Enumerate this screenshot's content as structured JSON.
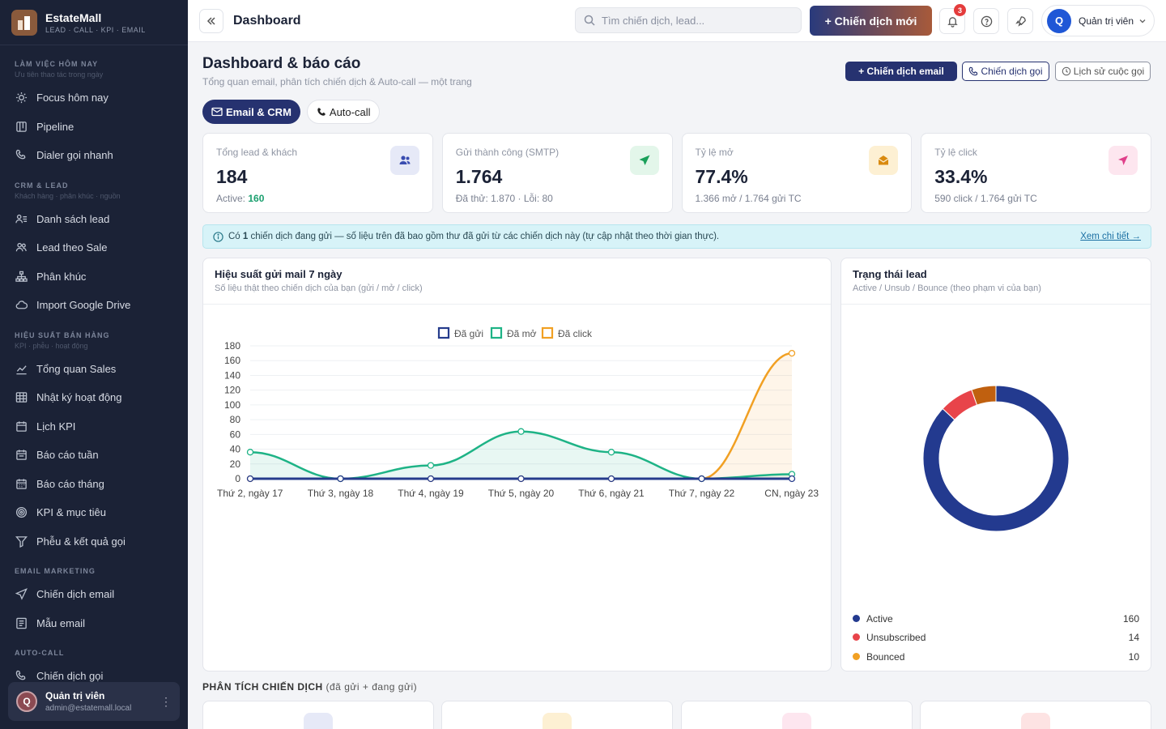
{
  "brand": {
    "name": "EstateMall",
    "tagline": "LEAD · CALL · KPI · EMAIL"
  },
  "sidebar": {
    "sections": [
      {
        "title": "LÀM VIỆC HÔM NAY",
        "subtitle": "Ưu tiên thao tác trong ngày",
        "items": [
          {
            "label": "Focus hôm nay",
            "icon": "sun-icon"
          },
          {
            "label": "Pipeline",
            "icon": "pipeline-icon"
          },
          {
            "label": "Dialer gọi nhanh",
            "icon": "phone-icon"
          }
        ]
      },
      {
        "title": "CRM & LEAD",
        "subtitle": "Khách hàng · phân khúc · nguồn",
        "items": [
          {
            "label": "Danh sách lead",
            "icon": "user-list-icon"
          },
          {
            "label": "Lead theo Sale",
            "icon": "users-icon"
          },
          {
            "label": "Phân khúc",
            "icon": "sitemap-icon"
          },
          {
            "label": "Import Google Drive",
            "icon": "cloud-icon"
          }
        ]
      },
      {
        "title": "HIỆU SUẤT BÁN HÀNG",
        "subtitle": "KPI · phễu · hoạt động",
        "items": [
          {
            "label": "Tổng quan Sales",
            "icon": "trend-icon"
          },
          {
            "label": "Nhật ký hoạt động",
            "icon": "table-icon"
          },
          {
            "label": "Lịch KPI",
            "icon": "calendar-icon"
          },
          {
            "label": "Báo cáo tuần",
            "icon": "calendar-week-icon"
          },
          {
            "label": "Báo cáo tháng",
            "icon": "calendar-month-icon"
          },
          {
            "label": "KPI & mục tiêu",
            "icon": "target-icon"
          },
          {
            "label": "Phễu & kết quả gọi",
            "icon": "funnel-icon"
          }
        ]
      },
      {
        "title": "EMAIL MARKETING",
        "subtitle": "",
        "items": [
          {
            "label": "Chiến dịch email",
            "icon": "send-icon"
          },
          {
            "label": "Mẫu email",
            "icon": "template-icon"
          }
        ]
      },
      {
        "title": "AUTO-CALL",
        "subtitle": "",
        "items": [
          {
            "label": "Chiến dịch gọi",
            "icon": "phone-icon"
          }
        ]
      }
    ],
    "user": {
      "initial": "Q",
      "name": "Quản trị viên",
      "email": "admin@estatemall.local"
    }
  },
  "topbar": {
    "title": "Dashboard",
    "search_placeholder": "Tìm chiến dịch, lead...",
    "new_campaign": "+ Chiến dịch mới",
    "notifications": "3",
    "user_initial": "Q",
    "user_name": "Quản trị viên"
  },
  "page": {
    "title": "Dashboard & báo cáo",
    "subtitle": "Tổng quan email, phân tích chiến dịch & Auto-call — một trang",
    "actions": {
      "email": "+ Chiến dịch email",
      "call": "Chiến dịch gọi",
      "history": "Lịch sử cuộc gọi"
    },
    "tabs": {
      "email": "Email & CRM",
      "autocall": "Auto-call"
    }
  },
  "kpis": [
    {
      "label": "Tổng lead & khách",
      "value": "184",
      "sub_prefix": "Active: ",
      "sub_value": "160",
      "icon": "users-icon",
      "color": "#3a4db0",
      "bg": "#e6e9f7"
    },
    {
      "label": "Gửi thành công (SMTP)",
      "value": "1.764",
      "sub": "Đã thử: 1.870 · Lỗi: 80",
      "icon": "send-icon",
      "color": "#1aa05a",
      "bg": "#e3f6ea"
    },
    {
      "label": "Tỷ lệ mở",
      "value": "77.4%",
      "sub": "1.366 mở / 1.764 gửi TC",
      "icon": "envelope-open-icon",
      "color": "#d98a0f",
      "bg": "#fdf0d3"
    },
    {
      "label": "Tỷ lệ click",
      "value": "33.4%",
      "sub": "590 click / 1.764 gửi TC",
      "icon": "cursor-icon",
      "color": "#e0408a",
      "bg": "#fde6ef"
    }
  ],
  "alert": {
    "text_pre": "Có ",
    "count": "1",
    "text_post": " chiến dịch đang gửi — số liệu trên đã bao gồm thư đã gửi từ các chiến dịch này (tự cập nhật theo thời gian thực).",
    "link": "Xem chi tiết →"
  },
  "mail_card": {
    "title": "Hiệu suất gửi mail 7 ngày",
    "subtitle": "Số liệu thật theo chiến dịch của bạn (gửi / mở / click)"
  },
  "lead_card": {
    "title": "Trạng thái lead",
    "subtitle": "Active / Unsub / Bounce (theo phạm vi của bạn)"
  },
  "section_campaign": {
    "title": "PHÂN TÍCH CHIẾN DỊCH",
    "note": "(đã gửi + đang gửi)"
  },
  "chart_data": [
    {
      "type": "line",
      "categories": [
        "Thứ 2, ngày 17",
        "Thứ 3, ngày 18",
        "Thứ 4, ngày 19",
        "Thứ 5, ngày 20",
        "Thứ 6, ngày 21",
        "Thứ 7, ngày 22",
        "CN, ngày 23"
      ],
      "series": [
        {
          "name": "Đã gửi",
          "color": "#263c8c",
          "values": [
            0,
            0,
            0,
            0,
            0,
            0,
            0
          ]
        },
        {
          "name": "Đã mở",
          "color": "#1eb386",
          "values": [
            36,
            0,
            18,
            64,
            36,
            0,
            6
          ]
        },
        {
          "name": "Đã click",
          "color": "#f1a023",
          "values": [
            0,
            0,
            0,
            0,
            0,
            0,
            170
          ]
        }
      ],
      "y_ticks": [
        "180",
        "160",
        "140",
        "120",
        "100",
        "80",
        "60",
        "40",
        "20",
        "0"
      ],
      "ylim": [
        0,
        180
      ],
      "legend": "top"
    },
    {
      "type": "pie",
      "categories": [
        "Active",
        "Unsubscribed",
        "Bounced"
      ],
      "values": [
        160,
        14,
        10
      ],
      "display_values": [
        "160",
        "14",
        "10"
      ],
      "colors": [
        "#233a8f",
        "#e8444a",
        "#c0600f"
      ],
      "legend_dot_colors": [
        "#233a8f",
        "#e8444a",
        "#f1a023"
      ]
    }
  ]
}
